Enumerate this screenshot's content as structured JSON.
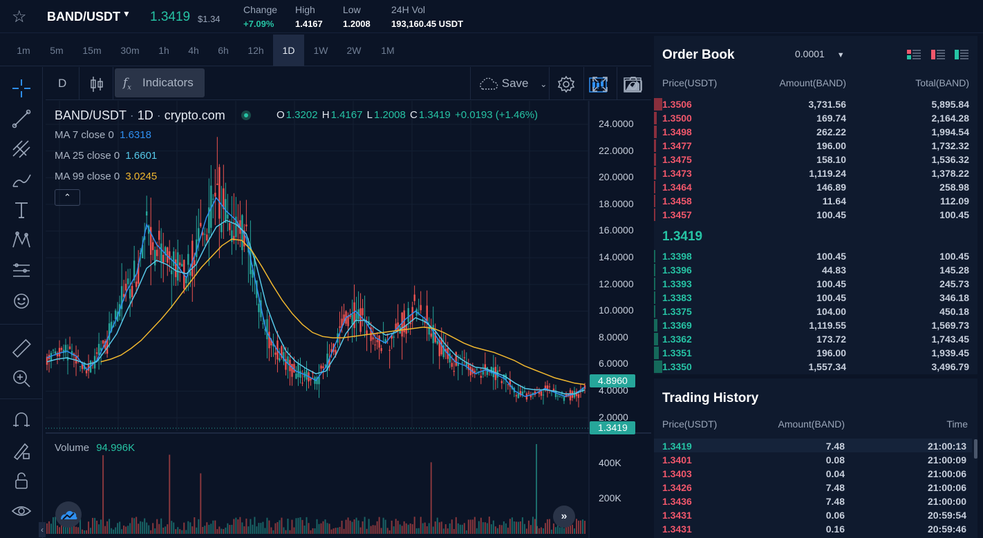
{
  "header": {
    "pair": "BAND/USDT",
    "last_price": "1.3419",
    "last_price_usd": "$1.34",
    "stats": [
      {
        "label": "Change",
        "value": "+7.09%",
        "color": "green"
      },
      {
        "label": "High",
        "value": "1.4167"
      },
      {
        "label": "Low",
        "value": "1.2008"
      },
      {
        "label": "24H Vol",
        "value": "193,160.45 USDT"
      }
    ]
  },
  "intervals": [
    "1m",
    "5m",
    "15m",
    "30m",
    "1h",
    "4h",
    "6h",
    "12h",
    "1D",
    "1W",
    "2W",
    "1M"
  ],
  "active_interval": "1D",
  "chart_toolbar": {
    "resolution": "D",
    "indicators_label": "Indicators",
    "save_label": "Save"
  },
  "chart_legend": {
    "symbol": "BAND/USDT",
    "interval": "1D",
    "exchange": "crypto.com",
    "open_key": "O",
    "open": "1.3202",
    "high_key": "H",
    "high": "1.4167",
    "low_key": "L",
    "low": "1.2008",
    "close_key": "C",
    "close": "1.3419",
    "change": "+0.0193 (+1.46%)",
    "ma": [
      {
        "label": "MA 7 close 0",
        "value": "1.6318",
        "color": "#2f8ff0"
      },
      {
        "label": "MA 25 close 0",
        "value": "1.6601",
        "color": "#56c8e8"
      },
      {
        "label": "MA 99 close 0",
        "value": "3.0245",
        "color": "#f0b72f"
      }
    ],
    "volume_label": "Volume",
    "volume_value": "94.996K"
  },
  "chart_data": {
    "type": "line",
    "y_ticks": [
      "24.0000",
      "22.0000",
      "20.0000",
      "18.0000",
      "16.0000",
      "14.0000",
      "12.0000",
      "10.0000",
      "8.0000",
      "6.0000",
      "4.0000",
      "2.0000"
    ],
    "ylim": [
      1.5,
      25
    ],
    "price_badges": [
      {
        "value": "4.8960",
        "color": "#26a69a"
      },
      {
        "value": "1.3419",
        "color": "#26a69a"
      }
    ],
    "volume_ticks": [
      "400K",
      "200K"
    ],
    "series": [
      {
        "name": "MA 7 close 0",
        "color": "#2f8ff0",
        "values": [
          6.5,
          6.8,
          7.0,
          6.6,
          5.6,
          6.3,
          7.8,
          9.5,
          11.5,
          12.8,
          16.5,
          15.0,
          14.2,
          13.5,
          12.5,
          14.5,
          17.0,
          18.5,
          17.5,
          16.8,
          15.5,
          12.0,
          8.5,
          7.2,
          6.2,
          5.5,
          5.2,
          4.8,
          5.8,
          7.6,
          9.5,
          10.0,
          9.2,
          8.0,
          7.6,
          8.6,
          9.4,
          10.0,
          9.4,
          8.2,
          7.0,
          6.2,
          5.9,
          5.3,
          5.6,
          5.3,
          4.9,
          4.0,
          3.6,
          3.8,
          4.2,
          3.9,
          3.6,
          3.8,
          4.3
        ]
      },
      {
        "name": "MA 25 close 0",
        "color": "#56c8e8",
        "values": [
          6.2,
          6.4,
          6.5,
          6.3,
          6.0,
          6.2,
          7.2,
          8.3,
          10.0,
          11.5,
          13.2,
          13.8,
          13.5,
          13.0,
          12.8,
          13.5,
          15.0,
          16.3,
          16.8,
          16.5,
          15.8,
          13.5,
          10.5,
          8.5,
          7.0,
          6.2,
          5.7,
          5.3,
          5.5,
          6.7,
          8.3,
          9.3,
          9.3,
          8.7,
          8.2,
          8.4,
          8.9,
          9.5,
          9.2,
          8.5,
          7.5,
          6.7,
          6.2,
          5.8,
          5.7,
          5.4,
          5.1,
          4.6,
          4.2,
          4.1,
          4.1,
          4.0,
          3.8,
          3.8,
          4.1
        ]
      },
      {
        "name": "MA 99 close 0",
        "color": "#f0b72f",
        "values": [
          6.2,
          6.4,
          6.7,
          7.2,
          7.8,
          8.6,
          9.4,
          10.3,
          11.3,
          12.3,
          13.3,
          14.1,
          14.9,
          15.4,
          15.3,
          14.5,
          13.3,
          12.0,
          10.8,
          9.8,
          9.0,
          8.4,
          8.1,
          8.0,
          8.0,
          8.1,
          8.2,
          8.3,
          8.4,
          8.5,
          8.6,
          8.7,
          8.8,
          8.7,
          8.4,
          8.0,
          7.6,
          7.3,
          7.1,
          6.9,
          6.6,
          6.3,
          5.9,
          5.6,
          5.3,
          5.0,
          4.8,
          4.6,
          4.5
        ]
      }
    ]
  },
  "order_book": {
    "title": "Order Book",
    "precision": "0.0001",
    "headers": {
      "price": "Price(USDT)",
      "amount": "Amount(BAND)",
      "total": "Total(BAND)"
    },
    "asks": [
      {
        "price": "1.3506",
        "amount": "3,731.56",
        "total": "5,895.84",
        "depth": 1.0
      },
      {
        "price": "1.3500",
        "amount": "169.74",
        "total": "2,164.28",
        "depth": 0.37
      },
      {
        "price": "1.3498",
        "amount": "262.22",
        "total": "1,994.54",
        "depth": 0.34
      },
      {
        "price": "1.3477",
        "amount": "196.00",
        "total": "1,732.32",
        "depth": 0.29
      },
      {
        "price": "1.3475",
        "amount": "158.10",
        "total": "1,536.32",
        "depth": 0.26
      },
      {
        "price": "1.3473",
        "amount": "1,119.24",
        "total": "1,378.22",
        "depth": 0.23
      },
      {
        "price": "1.3464",
        "amount": "146.89",
        "total": "258.98",
        "depth": 0.05
      },
      {
        "price": "1.3458",
        "amount": "11.64",
        "total": "112.09",
        "depth": 0.02
      },
      {
        "price": "1.3457",
        "amount": "100.45",
        "total": "100.45",
        "depth": 0.02
      }
    ],
    "mid_price": "1.3419",
    "bids": [
      {
        "price": "1.3398",
        "amount": "100.45",
        "total": "100.45",
        "depth": 0.03
      },
      {
        "price": "1.3396",
        "amount": "44.83",
        "total": "145.28",
        "depth": 0.04
      },
      {
        "price": "1.3393",
        "amount": "100.45",
        "total": "245.73",
        "depth": 0.07
      },
      {
        "price": "1.3383",
        "amount": "100.45",
        "total": "346.18",
        "depth": 0.1
      },
      {
        "price": "1.3375",
        "amount": "104.00",
        "total": "450.18",
        "depth": 0.13
      },
      {
        "price": "1.3369",
        "amount": "1,119.55",
        "total": "1,569.73",
        "depth": 0.45
      },
      {
        "price": "1.3362",
        "amount": "173.72",
        "total": "1,743.45",
        "depth": 0.5
      },
      {
        "price": "1.3351",
        "amount": "196.00",
        "total": "1,939.45",
        "depth": 0.55
      },
      {
        "price": "1.3350",
        "amount": "1,557.34",
        "total": "3,496.79",
        "depth": 1.0
      }
    ]
  },
  "trading_history": {
    "title": "Trading History",
    "headers": {
      "price": "Price(USDT)",
      "amount": "Amount(BAND)",
      "time": "Time"
    },
    "rows": [
      {
        "price": "1.3419",
        "amount": "7.48",
        "time": "21:00:13",
        "side": "buy"
      },
      {
        "price": "1.3401",
        "amount": "0.08",
        "time": "21:00:09",
        "side": "sell"
      },
      {
        "price": "1.3403",
        "amount": "0.04",
        "time": "21:00:06",
        "side": "sell"
      },
      {
        "price": "1.3426",
        "amount": "7.48",
        "time": "21:00:06",
        "side": "sell"
      },
      {
        "price": "1.3436",
        "amount": "7.48",
        "time": "21:00:00",
        "side": "sell"
      },
      {
        "price": "1.3431",
        "amount": "0.06",
        "time": "20:59:54",
        "side": "sell"
      },
      {
        "price": "1.3431",
        "amount": "0.16",
        "time": "20:59:46",
        "side": "sell"
      }
    ]
  }
}
